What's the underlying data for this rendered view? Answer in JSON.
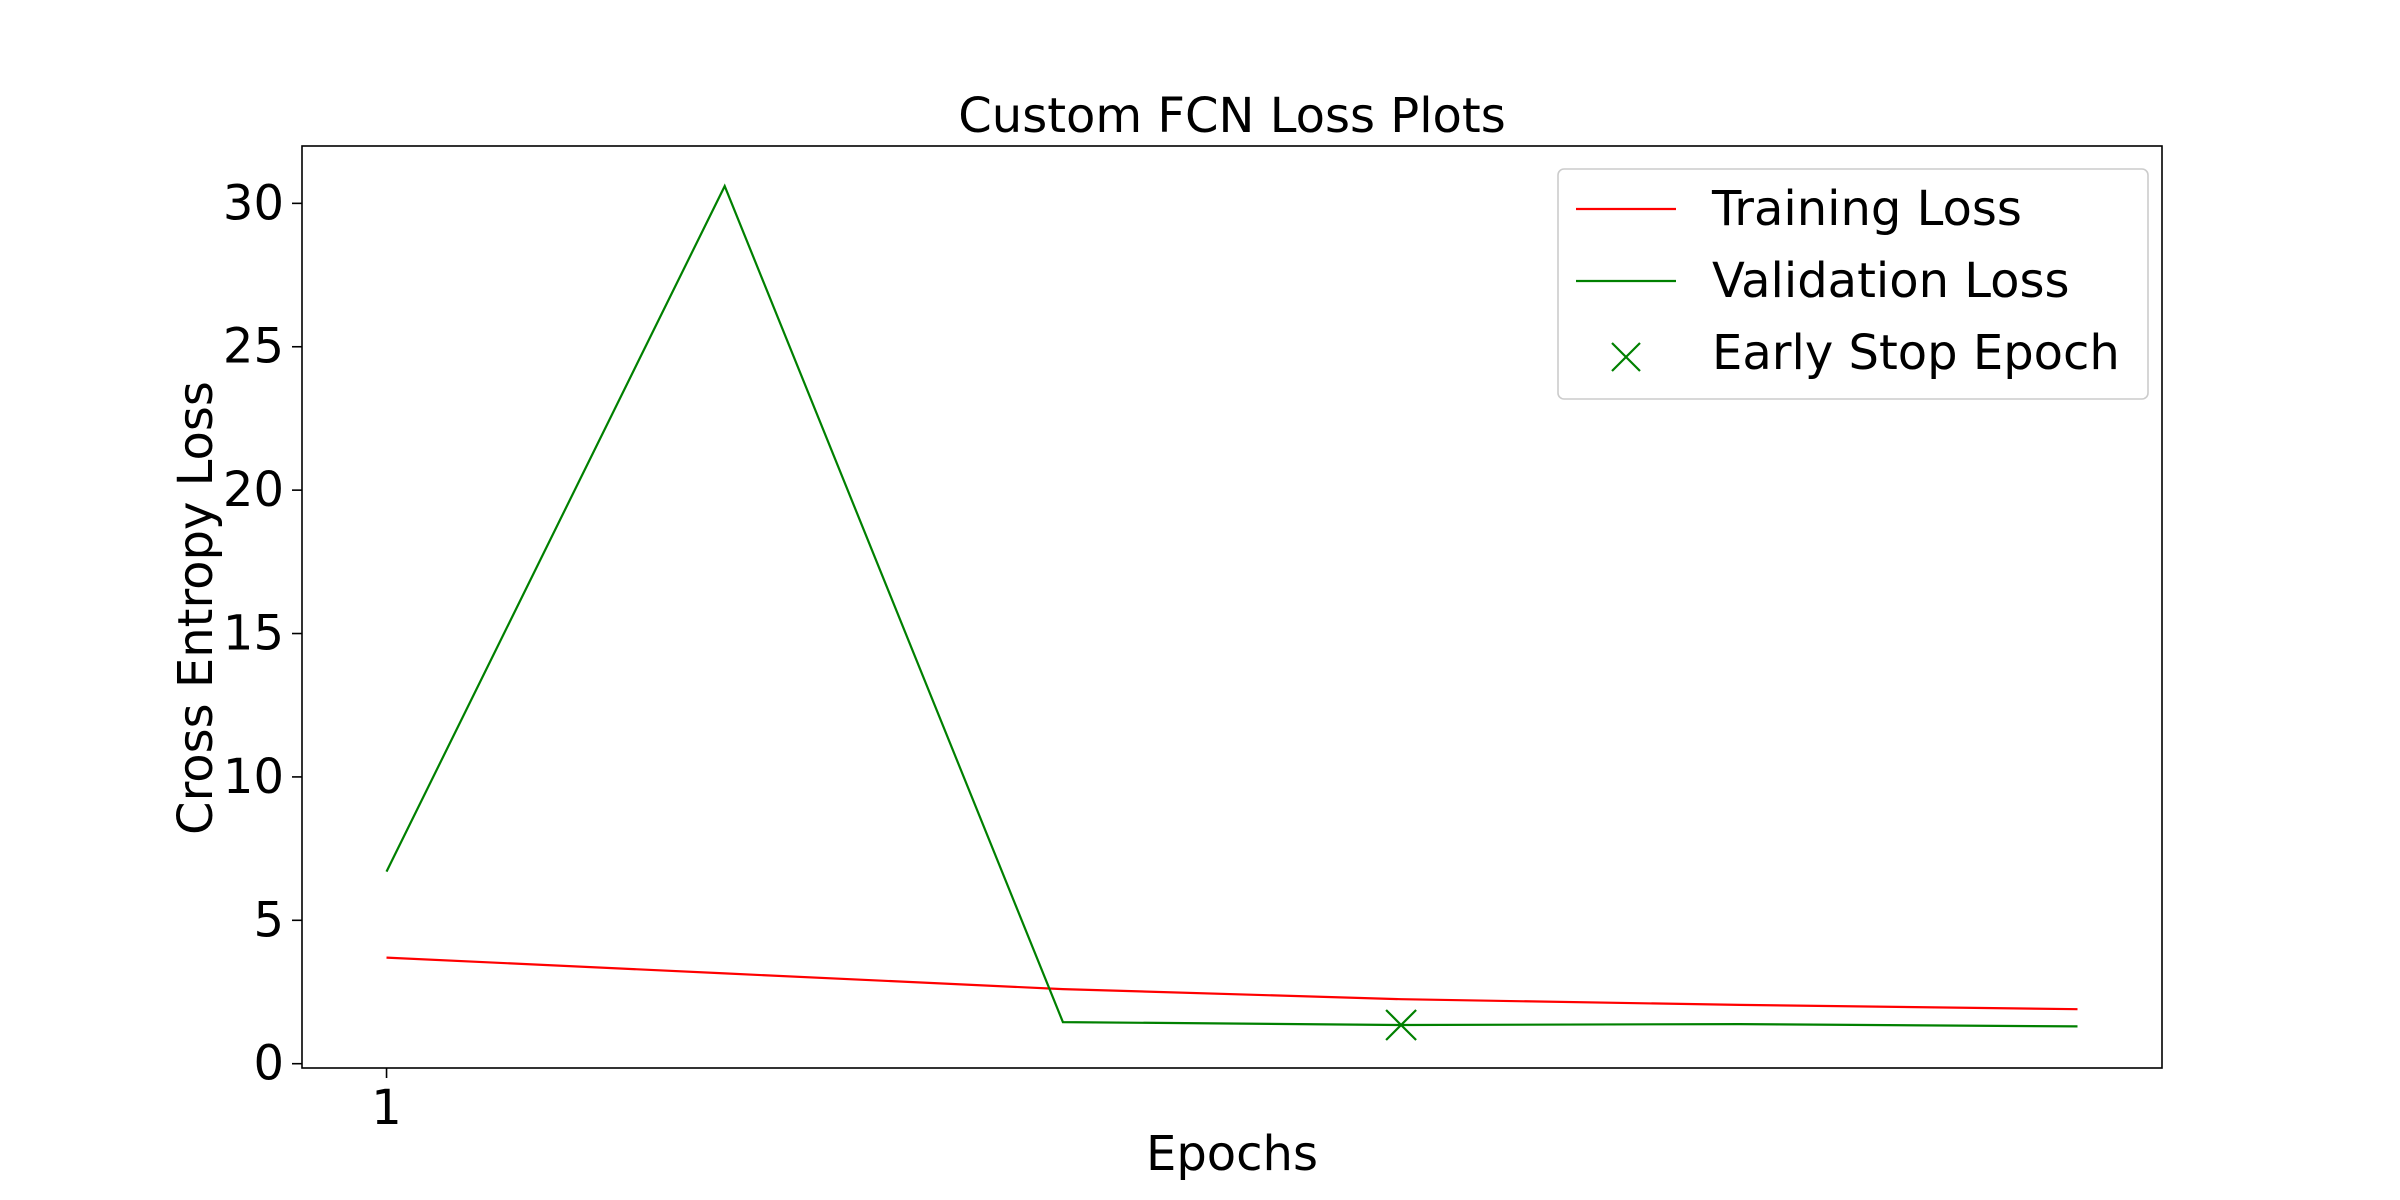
{
  "chart_data": {
    "type": "line",
    "title": "Custom FCN Loss Plots",
    "xlabel": "Epochs",
    "ylabel": "Cross Entropy Loss",
    "x": [
      1,
      2,
      3,
      4,
      5,
      6
    ],
    "x_ticks": [
      1
    ],
    "y_ticks": [
      0,
      5,
      10,
      15,
      20,
      25,
      30
    ],
    "xlim": [
      0.75,
      6.25
    ],
    "ylim": [
      -0.15,
      32.0
    ],
    "grid": false,
    "legend_position": "top-right",
    "series": [
      {
        "name": "Training Loss",
        "color": "#ff0000",
        "values": [
          3.7,
          3.15,
          2.6,
          2.25,
          2.05,
          1.9
        ]
      },
      {
        "name": "Validation Loss",
        "color": "#008000",
        "values": [
          6.7,
          30.6,
          1.45,
          1.35,
          1.38,
          1.3
        ]
      }
    ],
    "markers": [
      {
        "name": "Early Stop Epoch",
        "color": "#008000",
        "symbol": "x",
        "x": 4,
        "y": 1.35
      }
    ]
  }
}
